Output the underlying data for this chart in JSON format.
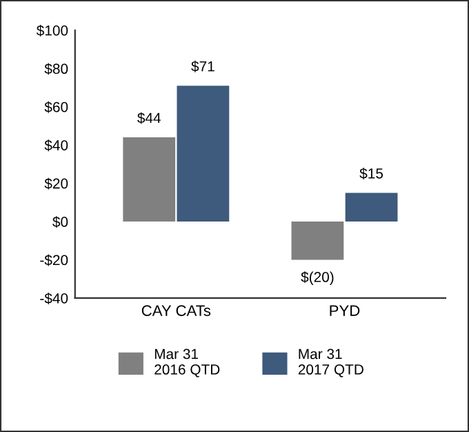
{
  "chart_data": {
    "type": "bar",
    "categories": [
      "CAY CATs",
      "PYD"
    ],
    "series": [
      {
        "name": "Mar 31\n2016 QTD",
        "color": "#808080",
        "values": [
          44,
          -20
        ],
        "value_labels": [
          "$44",
          "$(20)"
        ]
      },
      {
        "name": "Mar 31\n2017 QTD",
        "color": "#3e5a7c",
        "values": [
          71,
          15
        ],
        "value_labels": [
          "$71",
          "$15"
        ]
      }
    ],
    "ylim": [
      -40,
      100
    ],
    "yticks": [
      {
        "value": -40,
        "label": "-$40"
      },
      {
        "value": -20,
        "label": "-$20"
      },
      {
        "value": 0,
        "label": "$0"
      },
      {
        "value": 20,
        "label": "$20"
      },
      {
        "value": 40,
        "label": "$40"
      },
      {
        "value": 60,
        "label": "$60"
      },
      {
        "value": 80,
        "label": "$80"
      },
      {
        "value": 100,
        "label": "$100"
      }
    ],
    "grid": false,
    "legend": "bottom"
  }
}
